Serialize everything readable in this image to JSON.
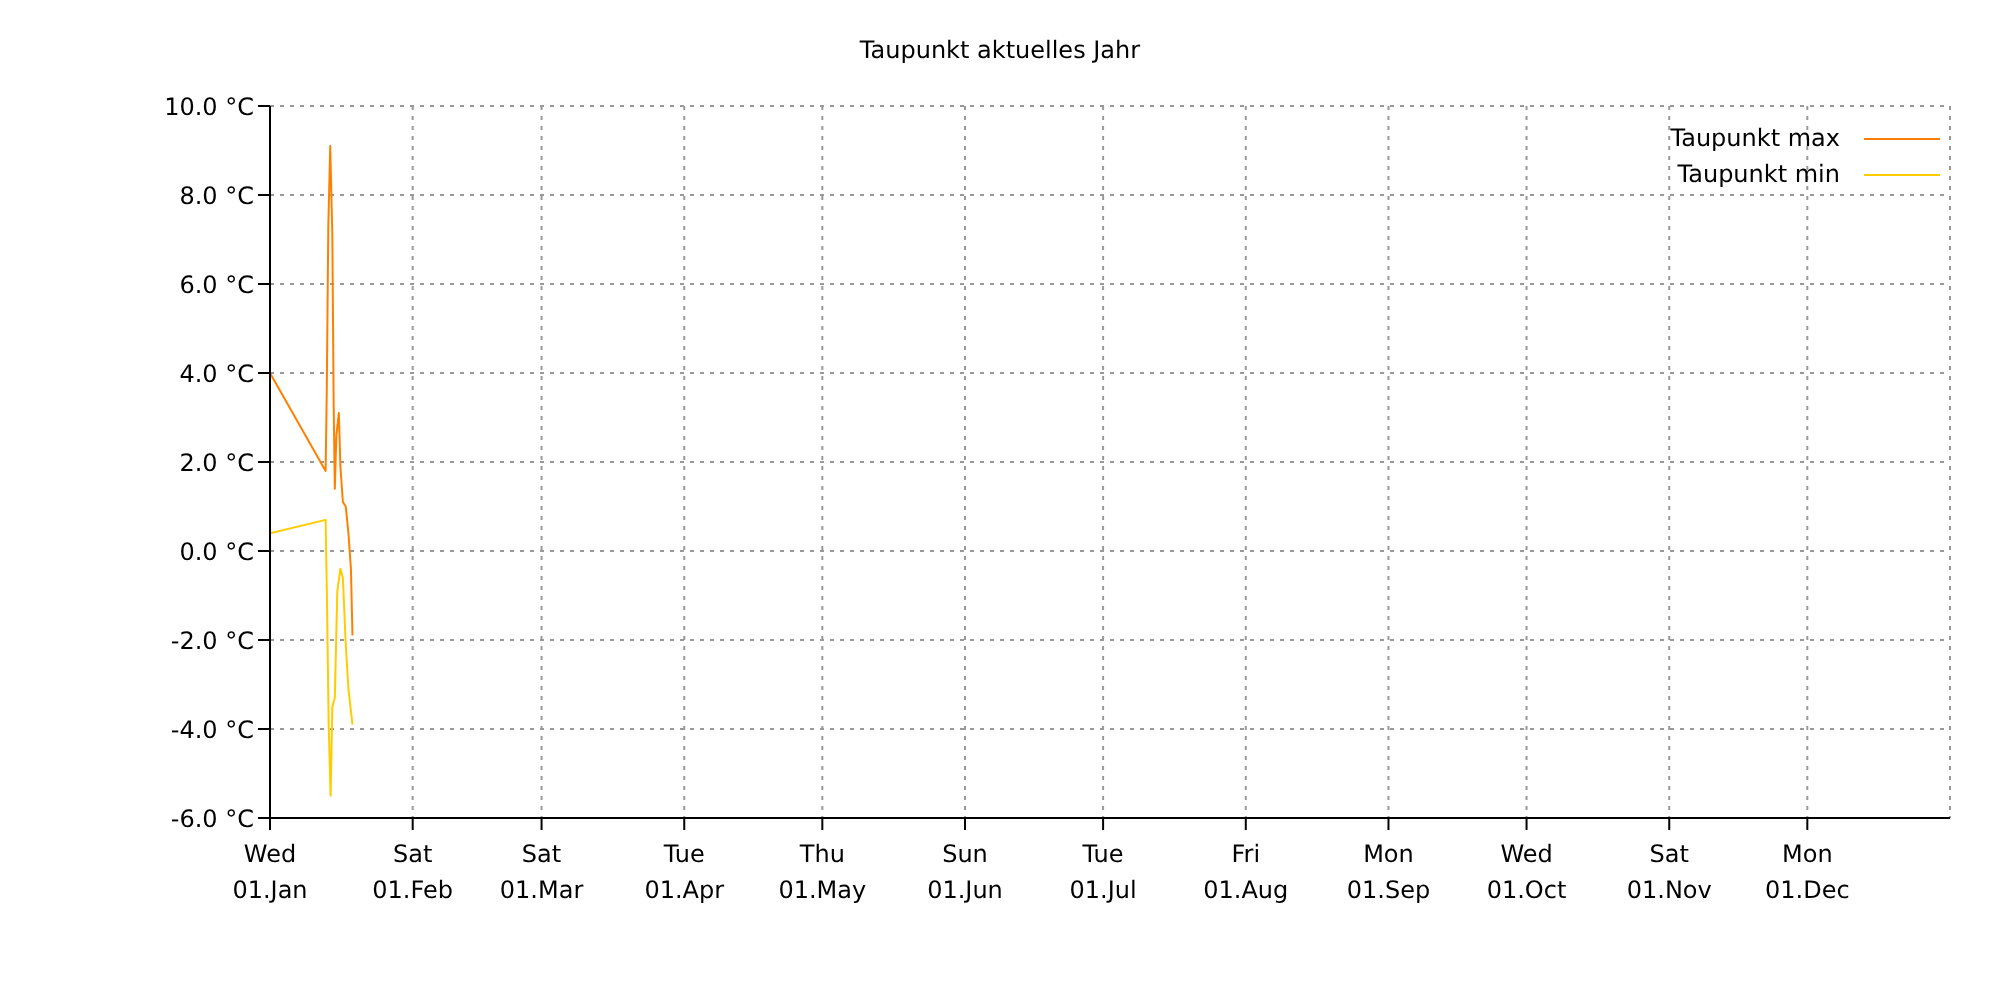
{
  "chart_data": {
    "type": "line",
    "title": "Taupunkt aktuelles Jahr",
    "xlim": [
      "--01-01",
      "--12-31T23:59"
    ],
    "xticks": [
      {
        "value": "--01-01",
        "label": "Wed\n01.Jan"
      },
      {
        "value": "--02-01",
        "label": "Sat\n01.Feb"
      },
      {
        "value": "--03-01",
        "label": "Sat\n01.Mar"
      },
      {
        "value": "--04-01",
        "label": "Tue\n01.Apr"
      },
      {
        "value": "--05-01",
        "label": "Thu\n01.May"
      },
      {
        "value": "--06-01",
        "label": "Sun\n01.Jun"
      },
      {
        "value": "--07-01",
        "label": "Tue\n01.Jul"
      },
      {
        "value": "--08-01",
        "label": "Fri\n01.Aug"
      },
      {
        "value": "--09-01",
        "label": "Mon\n01.Sep"
      },
      {
        "value": "--10-01",
        "label": "Wed\n01.Oct"
      },
      {
        "value": "--11-01",
        "label": "Sat\n01.Nov"
      },
      {
        "value": "--12-01",
        "label": "Mon\n01.Dec"
      }
    ],
    "ylim": [
      -6,
      10
    ],
    "yticks": [
      {
        "value": -6,
        "label": "-6.0 °C"
      },
      {
        "value": -4,
        "label": "-4.0 °C"
      },
      {
        "value": -2,
        "label": "-2.0 °C"
      },
      {
        "value": 0,
        "label": "0.0 °C"
      },
      {
        "value": 2,
        "label": "2.0 °C"
      },
      {
        "value": 4,
        "label": "4.0 °C"
      },
      {
        "value": 6,
        "label": "6.0 °C"
      },
      {
        "value": 8,
        "label": "8.0 °C"
      },
      {
        "value": 10,
        "label": "10.0 °C"
      }
    ],
    "grid": true,
    "legend": "top right",
    "marker": "none",
    "line_style": "solid",
    "series": [
      {
        "name": "Taupunkt max",
        "color": "#ff8000",
        "x": [
          "--01-01T00:00",
          "--01-13T02:00",
          "--01-13T08:00",
          "--01-13T16:00",
          "--01-14T02:00",
          "--01-14T13:00",
          "--01-14T20:00",
          "--01-15T02:00",
          "--01-15T10:00",
          "--01-15T23:00",
          "--01-16T07:00",
          "--01-16T20:00",
          "--01-17T11:00",
          "--01-18T01:00",
          "--01-18T14:00",
          "--01-18T22:00"
        ],
        "values": [
          4.0,
          1.8,
          3.6,
          7.3,
          9.1,
          7.1,
          3.3,
          1.4,
          2.6,
          3.1,
          1.9,
          1.1,
          1.0,
          0.4,
          -0.4,
          -1.9
        ]
      },
      {
        "name": "Taupunkt min",
        "color": "#ffcc00",
        "x": [
          "--01-01T00:00",
          "--01-13T02:00",
          "--01-13T08:00",
          "--01-13T18:00",
          "--01-14T04:00",
          "--01-14T13:00",
          "--01-15T02:00",
          "--01-15T15:00",
          "--01-16T07:00",
          "--01-16T20:00",
          "--01-17T11:00",
          "--01-18T01:00",
          "--01-18T14:00",
          "--01-18T22:00"
        ],
        "values": [
          0.4,
          0.7,
          -0.8,
          -3.9,
          -5.5,
          -3.5,
          -3.3,
          -0.9,
          -0.4,
          -0.6,
          -2.1,
          -3.1,
          -3.6,
          -3.9
        ]
      }
    ]
  }
}
